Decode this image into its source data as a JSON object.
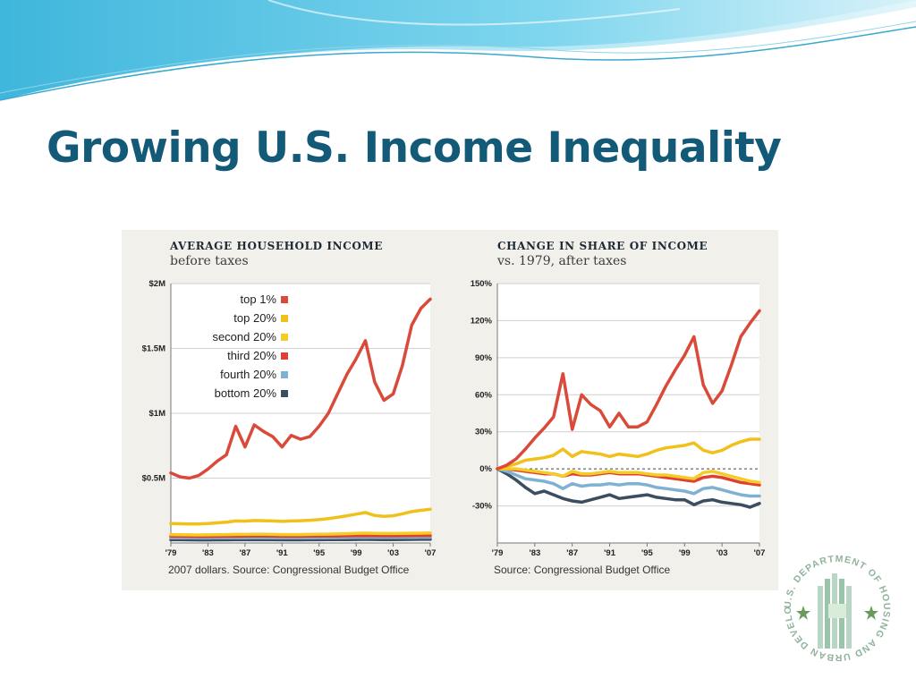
{
  "slide": {
    "title": "Growing U.S. Income Inequality"
  },
  "logo": {
    "text": "U.S. DEPARTMENT OF HOUSING AND URBAN DEVELOPMENT",
    "icon": "hud-seal-icon",
    "color": "#8fb39b"
  },
  "colors": {
    "title": "#135a78",
    "top1": "#d94a3b",
    "top20": "#f2c01a",
    "second20": "#f5cc26",
    "third20": "#e0402f",
    "fourth20": "#7fb2d2",
    "bottom20": "#3b4d60"
  },
  "chart_data": [
    {
      "type": "line",
      "title": "AVERAGE HOUSEHOLD INCOME",
      "subtitle": "before taxes",
      "source": "2007 dollars. Source: Congressional Budget Office",
      "x_ticks": [
        "'79",
        "'83",
        "'87",
        "'91",
        "'95",
        "'99",
        "'03",
        "'07"
      ],
      "y_ticks": [
        "$2M",
        "$1.5M",
        "$1M",
        "$0.5M"
      ],
      "ylim": [
        0,
        2000000
      ],
      "legend_position": "top-left",
      "grid": true,
      "x": [
        1979,
        1980,
        1981,
        1982,
        1983,
        1984,
        1985,
        1986,
        1987,
        1988,
        1989,
        1990,
        1991,
        1992,
        1993,
        1994,
        1995,
        1996,
        1997,
        1998,
        1999,
        2000,
        2001,
        2002,
        2003,
        2004,
        2005,
        2006,
        2007
      ],
      "series": [
        {
          "name": "top 1%",
          "color_key": "top1",
          "values": [
            540000,
            510000,
            500000,
            520000,
            570000,
            630000,
            680000,
            900000,
            740000,
            910000,
            860000,
            820000,
            740000,
            830000,
            800000,
            820000,
            900000,
            1000000,
            1150000,
            1300000,
            1420000,
            1560000,
            1240000,
            1100000,
            1150000,
            1370000,
            1680000,
            1810000,
            1880000
          ]
        },
        {
          "name": "top 20%",
          "color_key": "top20",
          "values": [
            150000,
            148000,
            146000,
            147000,
            150000,
            155000,
            160000,
            170000,
            168000,
            173000,
            172000,
            170000,
            166000,
            170000,
            172000,
            175000,
            180000,
            188000,
            198000,
            210000,
            222000,
            235000,
            212000,
            205000,
            210000,
            225000,
            242000,
            252000,
            260000
          ]
        },
        {
          "name": "second 20%",
          "color_key": "second20",
          "values": [
            65000,
            64000,
            63000,
            62000,
            63000,
            64000,
            65000,
            66000,
            66000,
            67000,
            67000,
            66000,
            65000,
            65000,
            65000,
            66000,
            67000,
            68000,
            70000,
            72000,
            74000,
            76000,
            74000,
            73000,
            73000,
            74000,
            75000,
            76000,
            77000
          ]
        },
        {
          "name": "third 20%",
          "color_key": "third20",
          "values": [
            52000,
            51500,
            51000,
            50000,
            50500,
            51000,
            51500,
            52000,
            52500,
            53000,
            53000,
            52500,
            52000,
            52000,
            52000,
            52500,
            53000,
            53500,
            54000,
            55000,
            56000,
            57000,
            56000,
            55500,
            55500,
            56000,
            56500,
            57000,
            57500
          ]
        },
        {
          "name": "fourth 20%",
          "color_key": "fourth20",
          "values": [
            40000,
            39500,
            39000,
            38500,
            38500,
            39000,
            39500,
            40000,
            40000,
            40500,
            40500,
            40000,
            39500,
            39500,
            39500,
            40000,
            40500,
            41000,
            41500,
            42000,
            43000,
            43500,
            43000,
            42500,
            42500,
            43000,
            43500,
            44000,
            44000
          ]
        },
        {
          "name": "bottom 20%",
          "color_key": "bottom20",
          "values": [
            25000,
            24500,
            24000,
            23500,
            23500,
            24000,
            24000,
            24500,
            24500,
            25000,
            25000,
            24500,
            24000,
            24000,
            24000,
            24500,
            25000,
            25500,
            26000,
            26500,
            27000,
            27500,
            27000,
            26500,
            26500,
            27000,
            27500,
            28000,
            28000
          ]
        }
      ]
    },
    {
      "type": "line",
      "title": "CHANGE IN SHARE OF INCOME",
      "subtitle": "vs. 1979, after taxes",
      "source": "Source: Congressional Budget Office",
      "x_ticks": [
        "'79",
        "'83",
        "'87",
        "'91",
        "'95",
        "'99",
        "'03",
        "'07"
      ],
      "y_ticks": [
        "150%",
        "120%",
        "90%",
        "60%",
        "30%",
        "0%",
        "-30%"
      ],
      "ylim": [
        -60,
        150
      ],
      "zero_line": "dashed",
      "grid": true,
      "x": [
        1979,
        1980,
        1981,
        1982,
        1983,
        1984,
        1985,
        1986,
        1987,
        1988,
        1989,
        1990,
        1991,
        1992,
        1993,
        1994,
        1995,
        1996,
        1997,
        1998,
        1999,
        2000,
        2001,
        2002,
        2003,
        2004,
        2005,
        2006,
        2007
      ],
      "series": [
        {
          "name": "top 1%",
          "color_key": "top1",
          "values": [
            0,
            3,
            8,
            16,
            25,
            33,
            42,
            77,
            32,
            60,
            52,
            47,
            34,
            45,
            34,
            34,
            38,
            52,
            67,
            80,
            92,
            107,
            68,
            53,
            63,
            84,
            107,
            118,
            128
          ]
        },
        {
          "name": "top 20%",
          "color_key": "top20",
          "values": [
            0,
            2,
            4,
            7,
            8,
            9,
            11,
            16,
            10,
            14,
            13,
            12,
            10,
            12,
            11,
            10,
            12,
            15,
            17,
            18,
            19,
            21,
            15,
            13,
            15,
            19,
            22,
            24,
            24
          ]
        },
        {
          "name": "second 20%",
          "color_key": "second20",
          "values": [
            0,
            0,
            0,
            -1,
            -2,
            -3,
            -4,
            -6,
            -2,
            -4,
            -4,
            -3,
            -2,
            -3,
            -3,
            -3,
            -4,
            -5,
            -5,
            -6,
            -7,
            -8,
            -3,
            -2,
            -4,
            -6,
            -8,
            -10,
            -11
          ]
        },
        {
          "name": "third 20%",
          "color_key": "third20",
          "values": [
            0,
            0,
            -1,
            -2,
            -3,
            -4,
            -4,
            -6,
            -4,
            -5,
            -5,
            -4,
            -3,
            -4,
            -4,
            -4,
            -5,
            -6,
            -7,
            -8,
            -9,
            -10,
            -7,
            -6,
            -7,
            -9,
            -11,
            -12,
            -13
          ]
        },
        {
          "name": "fourth 20%",
          "color_key": "fourth20",
          "values": [
            0,
            -2,
            -5,
            -8,
            -9,
            -10,
            -12,
            -16,
            -12,
            -14,
            -13,
            -13,
            -12,
            -13,
            -12,
            -12,
            -13,
            -15,
            -16,
            -17,
            -18,
            -20,
            -16,
            -15,
            -17,
            -19,
            -21,
            -22,
            -22
          ]
        },
        {
          "name": "bottom 20%",
          "color_key": "bottom20",
          "values": [
            0,
            -4,
            -9,
            -15,
            -20,
            -18,
            -21,
            -24,
            -26,
            -27,
            -25,
            -23,
            -21,
            -24,
            -23,
            -22,
            -21,
            -23,
            -24,
            -25,
            -25,
            -29,
            -26,
            -25,
            -27,
            -28,
            -29,
            -31,
            -28
          ]
        }
      ]
    }
  ]
}
